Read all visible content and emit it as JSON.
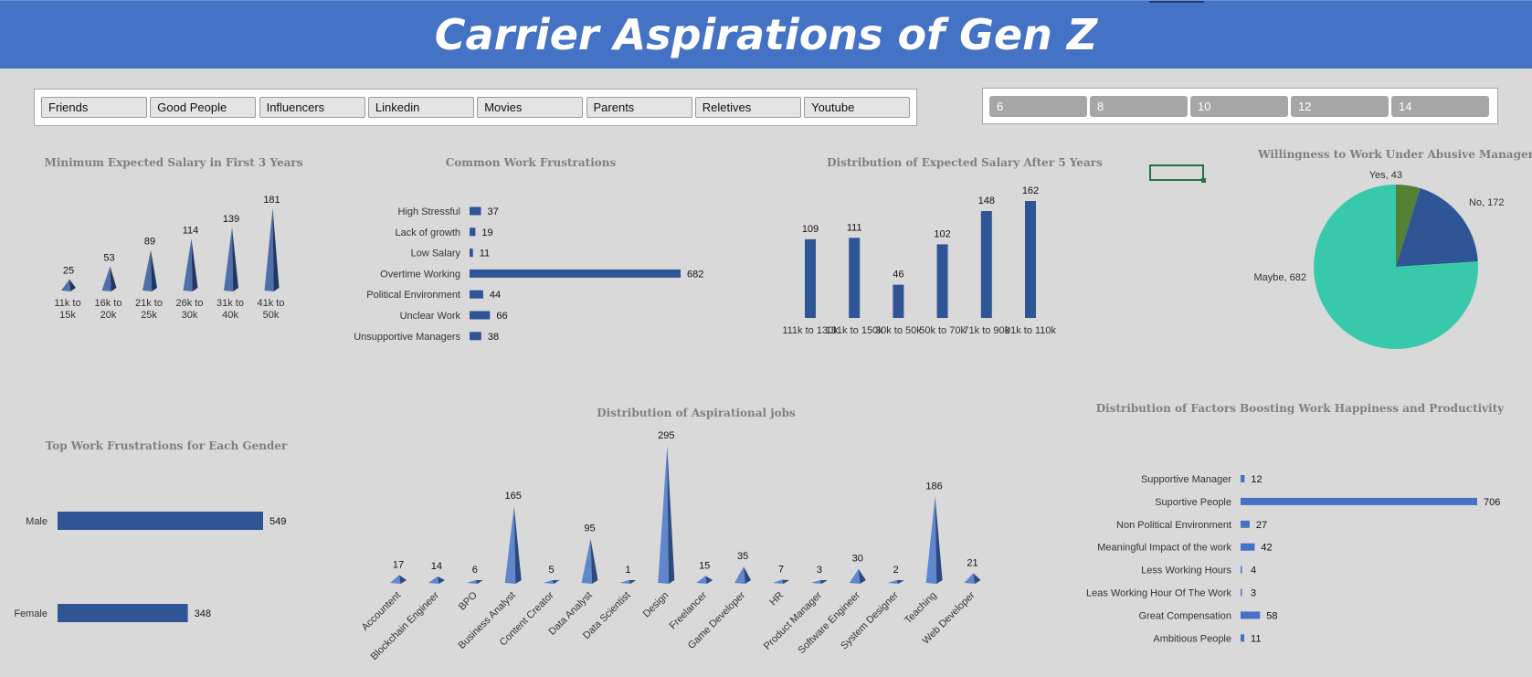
{
  "header": {
    "title": "Carrier Aspirations of Gen Z"
  },
  "slicers": {
    "influence_sources": [
      "Friends",
      "Good People",
      "Influencers",
      "Linkedin",
      "Movies",
      "Parents",
      "Reletives",
      "Youtube"
    ],
    "ages": [
      "6",
      "8",
      "10",
      "12",
      "14"
    ]
  },
  "charts": {
    "min_salary": {
      "chart_data": {
        "type": "bar",
        "style": "3d-pyramid-column",
        "title": "Minimum Expected Salary in First 3 Years",
        "categories": [
          "11k to 15k",
          "16k to 20k",
          "21k to 25k",
          "26k to 30k",
          "31k to 40k",
          "41k to 50k"
        ],
        "category_lines": [
          [
            "11k to",
            "15k"
          ],
          [
            "16k to",
            "20k"
          ],
          [
            "21k to",
            "25k"
          ],
          [
            "26k to",
            "30k"
          ],
          [
            "31k to",
            "40k"
          ],
          [
            "41k to",
            "50k"
          ]
        ],
        "values": [
          25,
          53,
          89,
          114,
          139,
          181
        ],
        "color": "#2f5597",
        "data_labels": true,
        "grid": false,
        "legend": "none"
      }
    },
    "frustrations": {
      "chart_data": {
        "type": "bar",
        "orientation": "horizontal",
        "title": "Common Work Frustrations",
        "categories": [
          "High Stressful",
          "Lack of growth",
          "Low Salary",
          "Overtime Working",
          "Political Environment",
          "Unclear Work",
          "Unsupportive Managers"
        ],
        "values": [
          37,
          19,
          11,
          682,
          44,
          66,
          38
        ],
        "color": "#2f5597",
        "data_labels": true,
        "grid": false,
        "legend": "none"
      }
    },
    "salary_5y": {
      "chart_data": {
        "type": "bar",
        "title": "Distribution of Expected Salary After 5 Years",
        "categories": [
          "111k to 130k",
          "131k to 150k",
          "30k to 50k",
          "50k to 70k",
          "71k to 90k",
          "91k to 110k"
        ],
        "values": [
          109,
          111,
          46,
          102,
          148,
          162
        ],
        "color": "#2f5597",
        "data_labels": true,
        "grid": false,
        "legend": "none"
      }
    },
    "abusive_manager": {
      "chart_data": {
        "type": "pie",
        "title": "Willingness to Work Under Abusive Manager",
        "categories": [
          "Yes",
          "No",
          "Maybe"
        ],
        "values": [
          43,
          172,
          682
        ],
        "labels": [
          "Yes, 43",
          "No, 172",
          "Maybe, 682"
        ],
        "colors": [
          "#548235",
          "#2f5597",
          "#38c9ad"
        ],
        "data_labels": true,
        "legend": "none"
      }
    },
    "gender_frustrations": {
      "chart_data": {
        "type": "bar",
        "orientation": "horizontal",
        "title": "Top Work Frustrations for Each Gender",
        "categories": [
          "Male",
          "Female"
        ],
        "values": [
          549,
          348
        ],
        "color": "#2f5597",
        "data_labels": true,
        "grid": false,
        "legend": "none"
      }
    },
    "jobs": {
      "chart_data": {
        "type": "bar",
        "style": "3d-pyramid-column",
        "title": "Distribution of Aspirational jobs",
        "categories": [
          "Accountent",
          "Blockchain Engineer",
          "BPO",
          "Business Analyst",
          "Content Creator",
          "Data Analyst",
          "Data Scientist",
          "Design",
          "Freelancer",
          "Game Developer",
          "HR",
          "Product Manager",
          "Software Engineer",
          "System Designer",
          "Teaching",
          "Web Developer"
        ],
        "values": [
          17,
          14,
          6,
          165,
          5,
          95,
          1,
          295,
          15,
          35,
          7,
          3,
          30,
          2,
          186,
          21
        ],
        "color": "#4472c4",
        "data_labels": true,
        "grid": false,
        "legend": "none"
      }
    },
    "happiness": {
      "chart_data": {
        "type": "bar",
        "orientation": "horizontal",
        "title": "Distribution of Factors Boosting Work Happiness and Productivity",
        "categories": [
          "Supportive Manager",
          "Suportive People",
          "Non Political Environment",
          "Meaningful Impact of the work",
          "Less Working Hours",
          "Leas Working Hour Of The Work",
          "Great Compensation",
          "Ambitious People"
        ],
        "values": [
          12,
          706,
          27,
          42,
          4,
          3,
          58,
          11
        ],
        "color": "#4472c4",
        "data_labels": true,
        "grid": false,
        "legend": "none"
      }
    }
  }
}
